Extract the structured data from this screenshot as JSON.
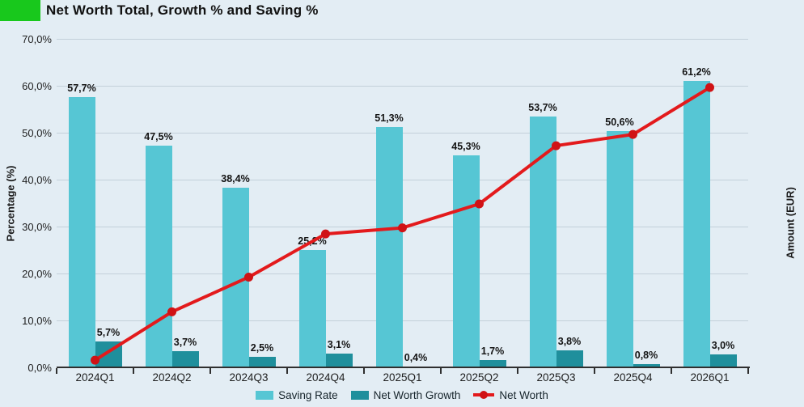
{
  "title": "Net Worth Total, Growth % and Saving %",
  "colors": {
    "background": "#e3edf4",
    "accent_green": "#18c81c",
    "grid": "#c3d0da",
    "axis_line": "#2f2f2f",
    "saving_rate": "#56c6d4",
    "net_worth_growth": "#1f8f9c",
    "net_worth_line": "#e31a1c",
    "net_worth_marker": "#d01215",
    "text": "#1a1a1a"
  },
  "chart_data": {
    "type": "bar+line",
    "title": "Net Worth Total, Growth % and Saving %",
    "categories": [
      "2024Q1",
      "2024Q2",
      "2024Q3",
      "2024Q4",
      "2025Q1",
      "2025Q2",
      "2025Q3",
      "2025Q4",
      "2026Q1"
    ],
    "series": [
      {
        "name": "Saving Rate",
        "type": "bar",
        "color": "#56c6d4",
        "values": [
          57.7,
          47.5,
          38.4,
          25.2,
          51.3,
          45.3,
          53.7,
          50.6,
          61.2
        ],
        "labels": [
          "57,7%",
          "47,5%",
          "38,4%",
          "25,2%",
          "51,3%",
          "45,3%",
          "53,7%",
          "50,6%",
          "61,2%"
        ]
      },
      {
        "name": "Net Worth Growth",
        "type": "bar",
        "color": "#1f8f9c",
        "values": [
          5.7,
          3.7,
          2.5,
          3.1,
          0.4,
          1.7,
          3.8,
          0.8,
          3.0
        ],
        "labels": [
          "5,7%",
          "3,7%",
          "2,5%",
          "3,1%",
          "0,4%",
          "1,7%",
          "3,8%",
          "0,8%",
          "3,0%"
        ]
      },
      {
        "name": "Net Worth",
        "type": "line",
        "axis": "right",
        "color": "#e31a1c",
        "marker_color": "#d01215",
        "note": "plotted against unlabeled right axis Amount (EUR); values below are position equivalents on the left percentage axis",
        "values": [
          1.7,
          12.0,
          19.4,
          28.6,
          29.9,
          35.0,
          47.4,
          49.8,
          59.8
        ]
      }
    ],
    "ylabel_left": "Percentage (%)",
    "ylabel_right": "Amount (EUR)",
    "ylim_left": [
      0,
      70
    ],
    "yticks_left": [
      "0,0%",
      "10,0%",
      "20,0%",
      "30,0%",
      "40,0%",
      "50,0%",
      "60,0%",
      "70,0%"
    ],
    "grid": true,
    "legend_position": "bottom",
    "legend": [
      "Saving Rate",
      "Net Worth Growth",
      "Net Worth"
    ]
  }
}
